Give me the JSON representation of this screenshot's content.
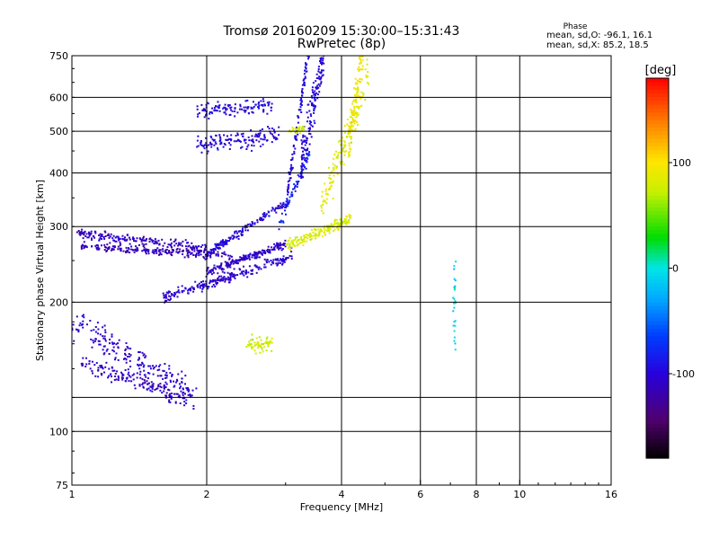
{
  "chart_data": {
    "type": "scatter",
    "title": "Tromsø 20160209 15:30:00–15:31:43",
    "subtitle": "RwPretec (8p)",
    "xlabel": "Frequency [MHz]",
    "ylabel": "Stationary phase Virtual Height [km]",
    "x_scale": "log",
    "y_scale": "log",
    "xlim": [
      1,
      16
    ],
    "ylim": [
      75,
      750
    ],
    "x_ticks": [
      1,
      2,
      4,
      6,
      8,
      10,
      16
    ],
    "x_gridlines": [
      2,
      4,
      6,
      8,
      10
    ],
    "y_ticks": [
      75,
      100,
      200,
      300,
      400,
      500,
      600,
      750
    ],
    "y_gridlines": [
      100,
      120,
      200,
      300,
      400,
      500,
      600
    ],
    "grid": true,
    "stats": {
      "heading": "Phase",
      "line_o": "mean, sd,O: -96.1, 16.1",
      "line_x": "mean, sd,X:  85.2, 18.5"
    },
    "colorbar": {
      "label": "[deg]",
      "range": [
        -180,
        180
      ],
      "ticks": [
        100,
        0,
        -100
      ],
      "colormap": "rainbow"
    },
    "traces": [
      {
        "phase": -110,
        "count": 190,
        "xmin": 1.02,
        "xmax": 2.0,
        "y0": 290,
        "slope": -0.08,
        "sd": 0.025
      },
      {
        "phase": -115,
        "count": 210,
        "xmin": 1.05,
        "xmax": 2.3,
        "y0": 270,
        "slope": -0.05,
        "sd": 0.02
      },
      {
        "phase": -105,
        "count": 230,
        "xmin": 1.6,
        "xmax": 3.1,
        "y0": 205,
        "slope": 0.22,
        "sd": 0.03
      },
      {
        "phase": -110,
        "count": 200,
        "xmin": 2.0,
        "xmax": 3.0,
        "y0": 235,
        "slope": 0.15,
        "sd": 0.02
      },
      {
        "phase": -100,
        "count": 160,
        "xmin": 2.0,
        "xmax": 3.0,
        "y0": 258,
        "slope": 0.28,
        "sd": 0.02
      },
      {
        "phase": -105,
        "count": 200,
        "xmin": 1.0,
        "xmax": 1.9,
        "y0": 180,
        "slope": -0.4,
        "sd": 0.07
      },
      {
        "phase": -110,
        "count": 160,
        "xmin": 1.05,
        "xmax": 1.8,
        "y0": 145,
        "slope": -0.2,
        "sd": 0.05
      },
      {
        "phase": -100,
        "count": 140,
        "xmin": 1.9,
        "xmax": 2.9,
        "y0": 465,
        "slope": 0.05,
        "sd": 0.05
      },
      {
        "phase": -100,
        "count": 120,
        "xmin": 1.9,
        "xmax": 2.8,
        "y0": 560,
        "slope": 0.02,
        "sd": 0.04
      },
      {
        "phase": -100,
        "count": 160,
        "xmin": 3.25,
        "xmax": 3.65,
        "y0": 420,
        "slope": 0.6,
        "sd": 0.12
      },
      {
        "phase": -95,
        "count": 120,
        "xmin": 3.0,
        "xmax": 3.4,
        "y0": 330,
        "slope": 0.9,
        "sd": 0.05
      },
      {
        "phase": -80,
        "count": 60,
        "xmin": 2.9,
        "xmax": 3.4,
        "y0": 300,
        "slope": 0.4,
        "sd": 0.03
      },
      {
        "phase": 80,
        "count": 170,
        "xmin": 3.0,
        "xmax": 4.2,
        "y0": 270,
        "slope": 0.15,
        "sd": 0.03
      },
      {
        "phase": 85,
        "count": 150,
        "xmin": 3.6,
        "xmax": 4.6,
        "y0": 330,
        "slope": 0.7,
        "sd": 0.09
      },
      {
        "phase": 95,
        "count": 110,
        "xmin": 4.15,
        "xmax": 4.5,
        "y0": 460,
        "slope": 0.6,
        "sd": 0.12
      },
      {
        "phase": 75,
        "count": 60,
        "xmin": 2.45,
        "xmax": 2.8,
        "y0": 160,
        "slope": 0.0,
        "sd": 0.05
      },
      {
        "phase": 80,
        "count": 30,
        "xmin": 3.05,
        "xmax": 3.3,
        "y0": 505,
        "slope": 0.0,
        "sd": 0.02
      },
      {
        "phase": -10,
        "count": 25,
        "xmin": 7.1,
        "xmax": 7.2,
        "y0": 200,
        "slope": 0.0,
        "sd": 0.3
      }
    ]
  }
}
